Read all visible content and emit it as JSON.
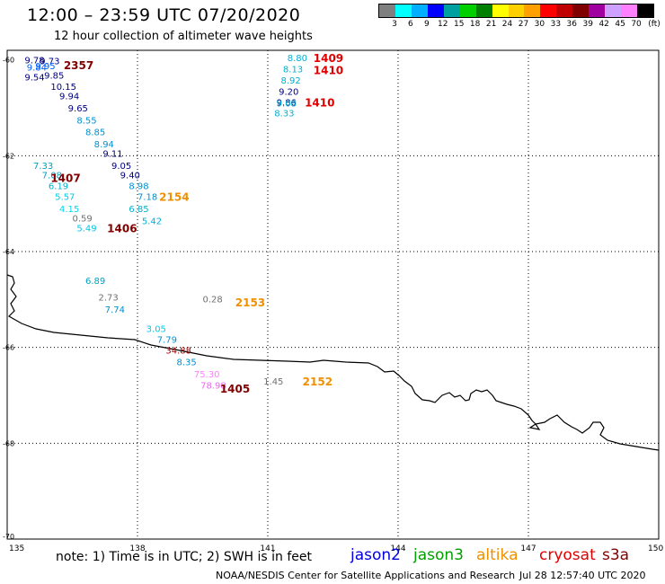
{
  "header": {
    "title": "12:00 – 23:59 UTC 07/20/2020",
    "subtitle": "12 hour collection of altimeter wave heights"
  },
  "color_scale": {
    "colors": [
      "#7f7f7f",
      "#00ffff",
      "#00b0ff",
      "#0000ff",
      "#00a0a0",
      "#00d000",
      "#008000",
      "#ffff00",
      "#ffd000",
      "#ffa000",
      "#ff0000",
      "#c00000",
      "#800000",
      "#a000a0",
      "#d0a0ff",
      "#ff80ff",
      "#000000"
    ],
    "labels": [
      "3",
      "6",
      "9",
      "12",
      "15",
      "18",
      "21",
      "24",
      "27",
      "30",
      "33",
      "36",
      "39",
      "42",
      "45",
      "70"
    ],
    "unit": "(ft)"
  },
  "axes": {
    "lon_labels": [
      "135",
      "138",
      "141",
      "144",
      "147",
      "150"
    ],
    "lat_labels": [
      "-60",
      "-62",
      "-64",
      "-66",
      "-68",
      "-70"
    ]
  },
  "chart_data": {
    "type": "scatter",
    "projection": "lon-lat",
    "lon_range": [
      135,
      150
    ],
    "lat_range": [
      -70,
      -59.8
    ],
    "wave_heights": [
      {
        "lon": 135.4,
        "lat": -60.0,
        "text": "9.78",
        "color": "#000080"
      },
      {
        "lon": 135.75,
        "lat": -60.02,
        "text": "9.73",
        "color": "#000080"
      },
      {
        "lon": 135.45,
        "lat": -60.15,
        "text": "9.84",
        "color": "#0060ff"
      },
      {
        "lon": 135.65,
        "lat": -60.12,
        "text": "9.95",
        "color": "#0060ff"
      },
      {
        "lon": 135.85,
        "lat": -60.32,
        "text": "9.85",
        "color": "#000080"
      },
      {
        "lon": 135.4,
        "lat": -60.35,
        "text": "9.54",
        "color": "#000080"
      },
      {
        "lon": 136.0,
        "lat": -60.55,
        "text": "10.15",
        "color": "#000080"
      },
      {
        "lon": 136.2,
        "lat": -60.75,
        "text": "9.94",
        "color": "#000080"
      },
      {
        "lon": 136.4,
        "lat": -61.0,
        "text": "9.65",
        "color": "#000080"
      },
      {
        "lon": 136.6,
        "lat": -61.25,
        "text": "8.55",
        "color": "#0090d0"
      },
      {
        "lon": 136.8,
        "lat": -61.5,
        "text": "8.85",
        "color": "#0090d0"
      },
      {
        "lon": 137.0,
        "lat": -61.75,
        "text": "8.94",
        "color": "#0090d0"
      },
      {
        "lon": 137.2,
        "lat": -61.95,
        "text": "9.11",
        "color": "#000080"
      },
      {
        "lon": 137.4,
        "lat": -62.2,
        "text": "9.05",
        "color": "#000080"
      },
      {
        "lon": 137.6,
        "lat": -62.4,
        "text": "9.40",
        "color": "#000080"
      },
      {
        "lon": 137.8,
        "lat": -62.62,
        "text": "8.98",
        "color": "#0090d0"
      },
      {
        "lon": 138.0,
        "lat": -62.85,
        "text": "7.18",
        "color": "#0090d0"
      },
      {
        "lon": 137.8,
        "lat": -63.1,
        "text": "6.85",
        "color": "#00b0d0"
      },
      {
        "lon": 138.1,
        "lat": -63.35,
        "text": "5.42",
        "color": "#00b0d0"
      },
      {
        "lon": 135.6,
        "lat": -62.2,
        "text": "7.33",
        "color": "#00a0c0"
      },
      {
        "lon": 135.8,
        "lat": -62.4,
        "text": "7.08",
        "color": "#00a0c0"
      },
      {
        "lon": 135.95,
        "lat": -62.62,
        "text": "6.19",
        "color": "#00b0d0"
      },
      {
        "lon": 136.1,
        "lat": -62.85,
        "text": "5.57",
        "color": "#00c8e8"
      },
      {
        "lon": 136.2,
        "lat": -63.1,
        "text": "4.15",
        "color": "#00d8f0"
      },
      {
        "lon": 136.5,
        "lat": -63.3,
        "text": "0.59",
        "color": "#707070"
      },
      {
        "lon": 136.6,
        "lat": -63.5,
        "text": "5.49",
        "color": "#00c8e8"
      },
      {
        "lon": 141.45,
        "lat": -59.95,
        "text": "8.80",
        "color": "#00b0d0"
      },
      {
        "lon": 141.35,
        "lat": -60.18,
        "text": "8.13",
        "color": "#00b0d0"
      },
      {
        "lon": 141.3,
        "lat": -60.42,
        "text": "8.92",
        "color": "#00b0d0"
      },
      {
        "lon": 141.25,
        "lat": -60.65,
        "text": "9.20",
        "color": "#000080"
      },
      {
        "lon": 141.2,
        "lat": -60.88,
        "text": "9.86",
        "color": "#000080"
      },
      {
        "lon": 141.2,
        "lat": -60.9,
        "text": "9.08",
        "color": "#00b0d0"
      },
      {
        "lon": 141.15,
        "lat": -61.1,
        "text": "8.33",
        "color": "#00b0d0"
      },
      {
        "lon": 136.8,
        "lat": -64.6,
        "text": "6.89",
        "color": "#00a0c0"
      },
      {
        "lon": 137.1,
        "lat": -64.95,
        "text": "2.73",
        "color": "#707070"
      },
      {
        "lon": 137.25,
        "lat": -65.2,
        "text": "7.74",
        "color": "#0090d0"
      },
      {
        "lon": 139.5,
        "lat": -64.98,
        "text": "0.28",
        "color": "#707070"
      },
      {
        "lon": 138.2,
        "lat": -65.6,
        "text": "3.05",
        "color": "#00c8e8"
      },
      {
        "lon": 138.45,
        "lat": -65.83,
        "text": "7.79",
        "color": "#0090d0"
      },
      {
        "lon": 138.65,
        "lat": -66.05,
        "text": "34.88",
        "color": "#a00000"
      },
      {
        "lon": 138.9,
        "lat": -66.3,
        "text": "8.35",
        "color": "#0090d0"
      },
      {
        "lon": 139.3,
        "lat": -66.55,
        "text": "75.30",
        "color": "#ff80ff"
      },
      {
        "lon": 139.45,
        "lat": -66.78,
        "text": "78.98",
        "color": "#ee66ee"
      },
      {
        "lon": 140.9,
        "lat": -66.7,
        "text": "1.45",
        "color": "#707070"
      }
    ],
    "pass_times": [
      {
        "lon": 136.3,
        "lat": -60.1,
        "text": "2357",
        "color": "#800000"
      },
      {
        "lon": 136.0,
        "lat": -62.45,
        "text": "1407",
        "color": "#800000"
      },
      {
        "lon": 137.3,
        "lat": -63.5,
        "text": "1406",
        "color": "#800000"
      },
      {
        "lon": 138.5,
        "lat": -62.85,
        "text": "2154",
        "color": "#f09000"
      },
      {
        "lon": 140.25,
        "lat": -65.05,
        "text": "2153",
        "color": "#f09000"
      },
      {
        "lon": 139.9,
        "lat": -66.85,
        "text": "1405",
        "color": "#800000"
      },
      {
        "lon": 142.05,
        "lat": -59.95,
        "text": "1409",
        "color": "#e00000"
      },
      {
        "lon": 142.05,
        "lat": -60.2,
        "text": "1410",
        "color": "#e00000"
      },
      {
        "lon": 141.85,
        "lat": -60.88,
        "text": "1410",
        "color": "#e00000"
      },
      {
        "lon": 141.8,
        "lat": -66.7,
        "text": "2152",
        "color": "#f09000"
      }
    ]
  },
  "footer": {
    "note": "note: 1) Time is in UTC; 2) SWH is in feet",
    "satellites": [
      {
        "name": "jason2",
        "color": "#0000e0"
      },
      {
        "name": "jason3",
        "color": "#00a000"
      },
      {
        "name": "altika",
        "color": "#f09000"
      },
      {
        "name": "cryosat",
        "color": "#e00000"
      },
      {
        "name": "s3a",
        "color": "#800000"
      }
    ],
    "credit": "NOAA/NESDIS Center for Satellite Applications and Research",
    "generated": "Jul 28 12:57:40 UTC 2020"
  }
}
